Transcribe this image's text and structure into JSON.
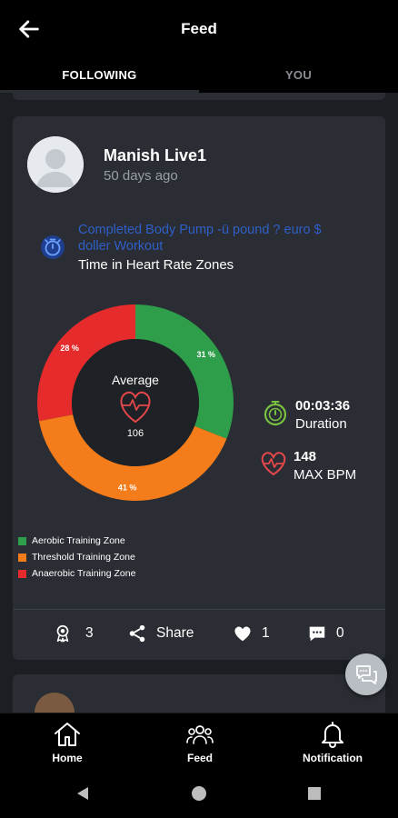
{
  "header": {
    "title": "Feed"
  },
  "tabs": [
    {
      "label": "FOLLOWING",
      "active": true
    },
    {
      "label": "YOU",
      "active": false
    }
  ],
  "post": {
    "user_name": "Manish Live1",
    "time_ago": "50  days ago",
    "workout_title": "Completed Body Pump -ü pound ? euro $ doller Workout",
    "zones_title": "Time in Heart Rate Zones",
    "average_label": "Average",
    "average_value": "106",
    "zones": [
      {
        "name": "Aerobic Training Zone",
        "percent": 31,
        "label": "31 %",
        "color": "#2e9e4a"
      },
      {
        "name": "Threshold Training Zone",
        "percent": 41,
        "label": "41 %",
        "color": "#f47c1a"
      },
      {
        "name": "Anaerobic Training Zone",
        "percent": 28,
        "label": "28 %",
        "color": "#e52b2b"
      }
    ],
    "duration_value": "00:03:36",
    "duration_label": "Duration",
    "bpm_value": "148",
    "bpm_label": "MAX BPM",
    "actions": {
      "badges_count": "3",
      "share_label": "Share",
      "likes_count": "1",
      "comments_count": "0"
    }
  },
  "bottom_nav": [
    {
      "label": "Home",
      "icon": "home-icon"
    },
    {
      "label": "Feed",
      "icon": "people-icon"
    },
    {
      "label": "Notification",
      "icon": "bell-icon"
    }
  ],
  "colors": {
    "background": "#000000",
    "card": "#2a2d33",
    "feed_bg": "#1b1e22",
    "link": "#2f5fc9",
    "duration_icon": "#7ac142",
    "heart_icon": "#e5474b"
  }
}
